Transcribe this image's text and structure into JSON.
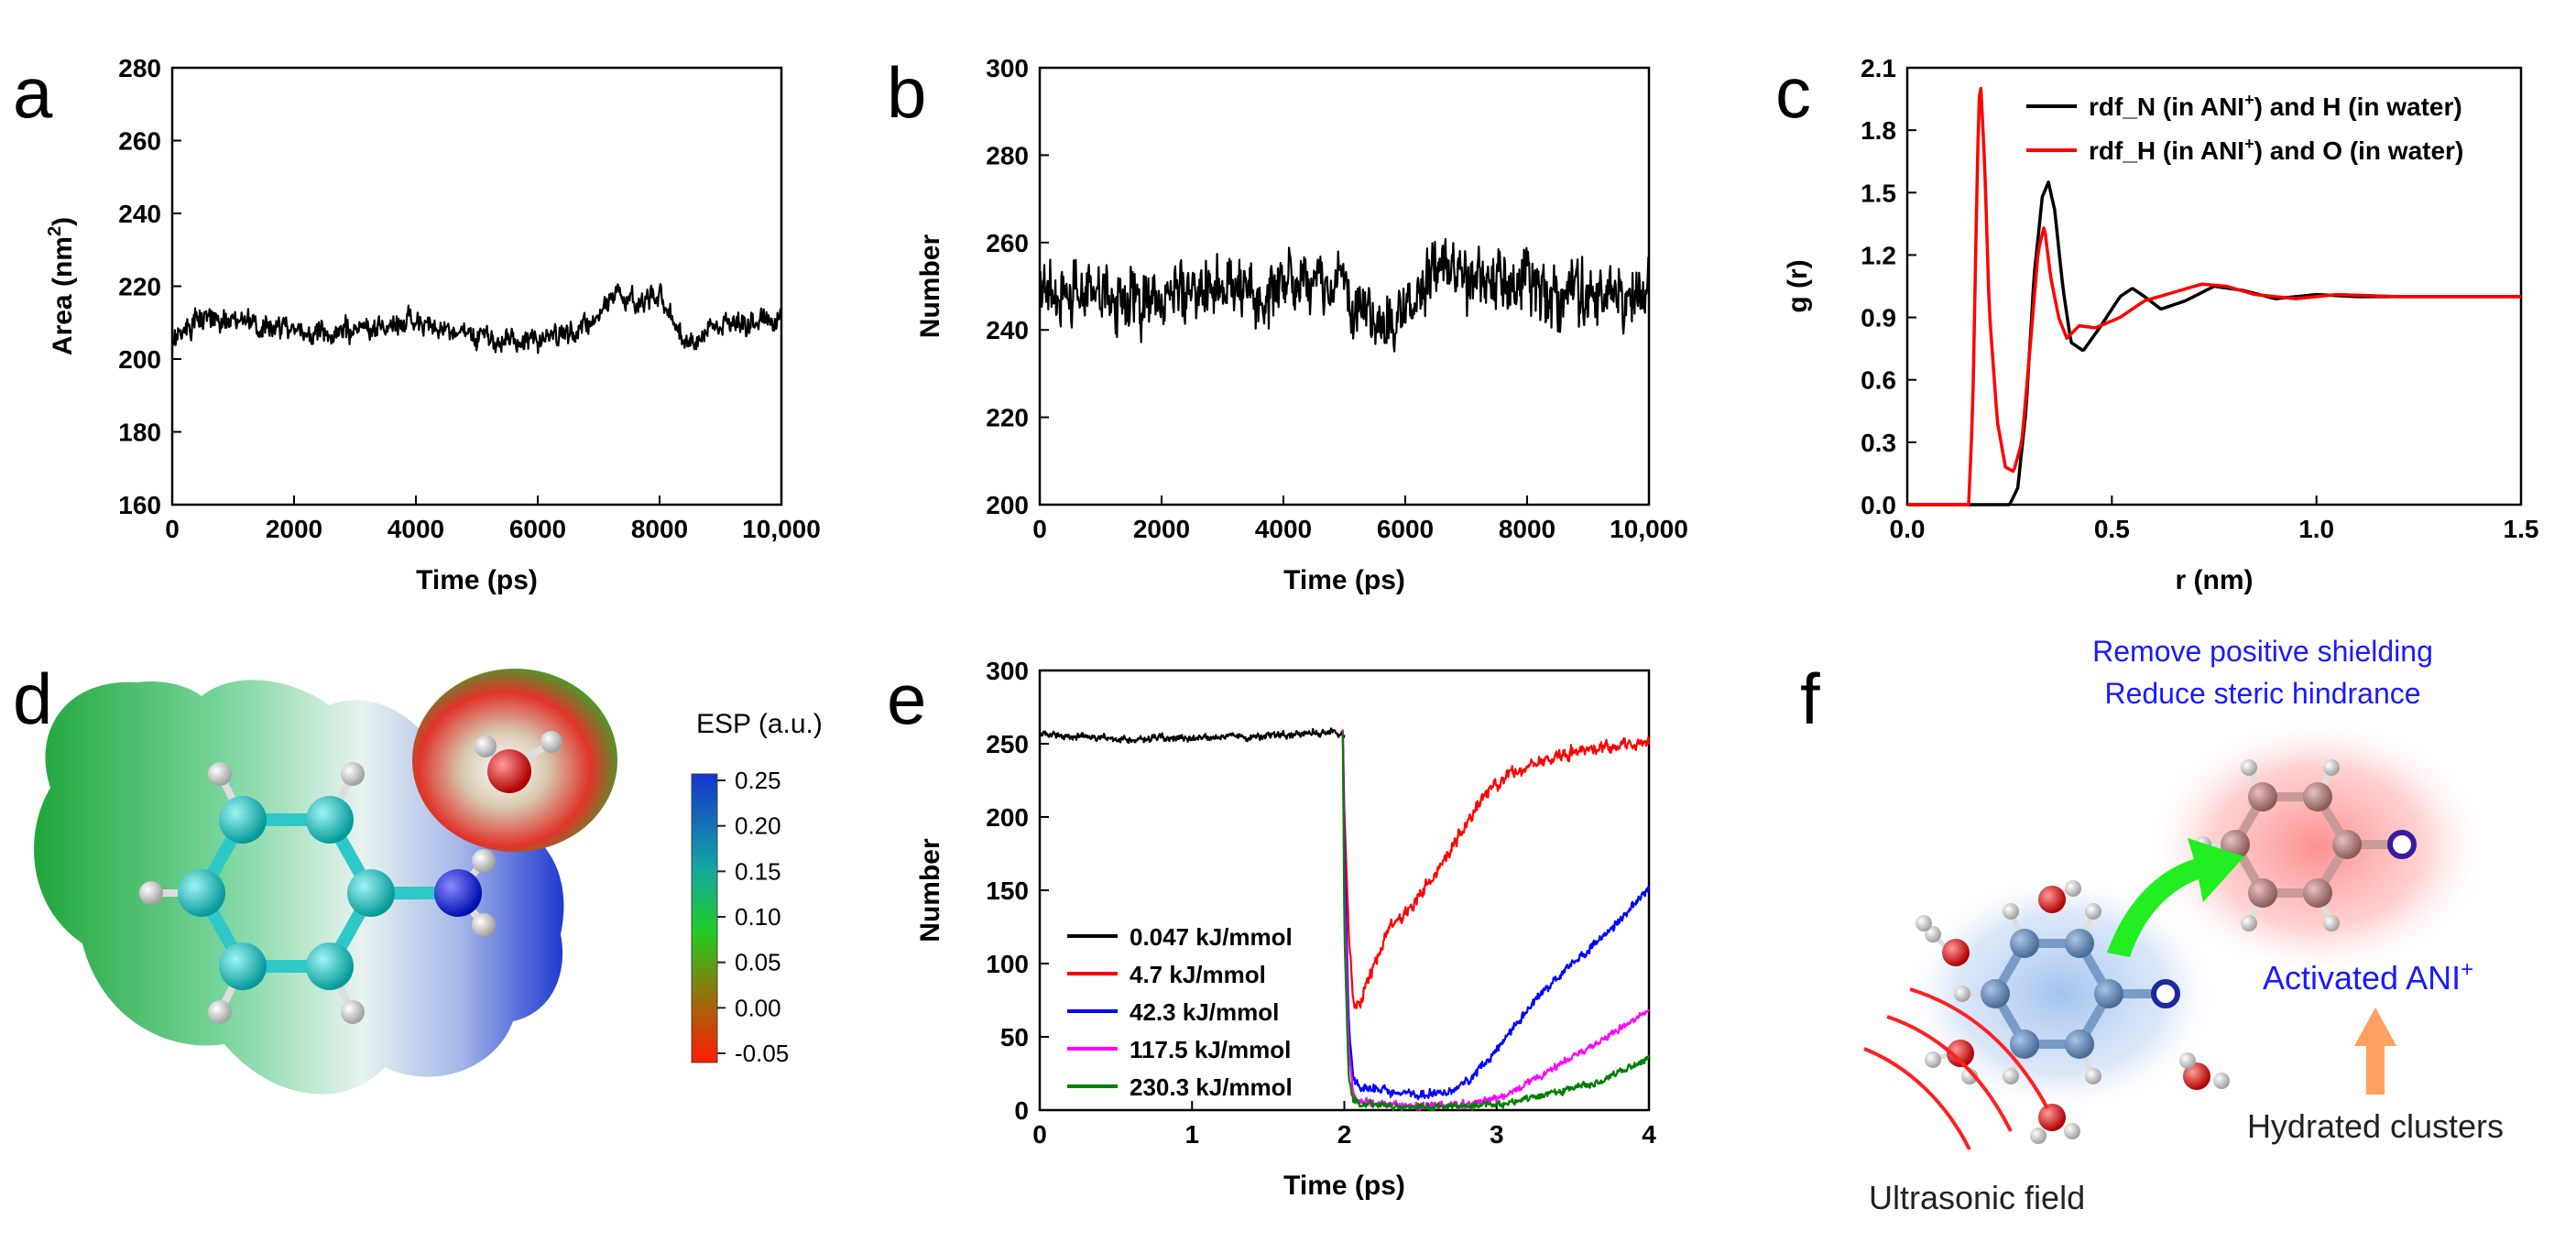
{
  "panels": {
    "a": {
      "letter": "a"
    },
    "b": {
      "letter": "b"
    },
    "c": {
      "letter": "c"
    },
    "d": {
      "letter": "d"
    },
    "e": {
      "letter": "e"
    },
    "f": {
      "letter": "f"
    }
  },
  "chart_data": [
    {
      "id": "a",
      "type": "line",
      "xlabel": "Time (ps)",
      "ylabel_main": "Area (nm",
      "ylabel_sup": "2",
      "ylabel_end": ")",
      "xlim": [
        0,
        10000
      ],
      "ylim": [
        160,
        280
      ],
      "xticks": [
        0,
        2000,
        4000,
        6000,
        8000,
        10000
      ],
      "xtick_labels": [
        "0",
        "2000",
        "4000",
        "6000",
        "8000",
        "10,000"
      ],
      "yticks": [
        160,
        180,
        200,
        220,
        240,
        260,
        280
      ],
      "ytick_labels": [
        "160",
        "180",
        "200",
        "220",
        "240",
        "260",
        "280"
      ],
      "series": [
        {
          "name": "area",
          "color": "#000000",
          "x": [
            0,
            500,
            1000,
            1500,
            2000,
            2500,
            3000,
            3500,
            4000,
            4500,
            5000,
            5500,
            6000,
            6500,
            7000,
            7300,
            7600,
            8000,
            8300,
            8600,
            9000,
            9500,
            10000
          ],
          "y": [
            205,
            212,
            210,
            210,
            207,
            207,
            208,
            209,
            211,
            208,
            206,
            205,
            205,
            207,
            211,
            220,
            215,
            217,
            208,
            205,
            210,
            210,
            211
          ],
          "noise": 4
        }
      ]
    },
    {
      "id": "b",
      "type": "line",
      "xlabel": "Time (ps)",
      "ylabel": "Number",
      "xlim": [
        0,
        10000
      ],
      "ylim": [
        200,
        300
      ],
      "xticks": [
        0,
        2000,
        4000,
        6000,
        8000,
        10000
      ],
      "xtick_labels": [
        "0",
        "2000",
        "4000",
        "6000",
        "8000",
        "10,000"
      ],
      "yticks": [
        200,
        220,
        240,
        260,
        280,
        300
      ],
      "ytick_labels": [
        "200",
        "220",
        "240",
        "260",
        "280",
        "300"
      ],
      "series": [
        {
          "name": "number",
          "color": "#000000",
          "x": [
            0,
            1000,
            2000,
            3000,
            4000,
            5000,
            5500,
            6000,
            6500,
            7000,
            8000,
            8500,
            9000,
            10000
          ],
          "y": [
            250,
            248,
            248,
            250,
            250,
            250,
            240,
            245,
            255,
            252,
            252,
            245,
            248,
            250
          ],
          "noise": 9
        }
      ]
    },
    {
      "id": "c",
      "type": "line",
      "xlabel": "r (nm)",
      "ylabel": "g (r)",
      "xlim": [
        0,
        1.5
      ],
      "ylim": [
        0,
        2.1
      ],
      "xticks": [
        0,
        0.5,
        1.0,
        1.5
      ],
      "xtick_labels": [
        "0.0",
        "0.5",
        "1.0",
        "1.5"
      ],
      "yticks": [
        0,
        0.3,
        0.6,
        0.9,
        1.2,
        1.5,
        1.8,
        2.1
      ],
      "ytick_labels": [
        "0.0",
        "0.3",
        "0.6",
        "0.9",
        "1.2",
        "1.5",
        "1.8",
        "2.1"
      ],
      "legend_position": "top-right",
      "series": [
        {
          "name_main": "rdf_N (in ANI",
          "name_sup": "+",
          "name_end": ") and H (in water)",
          "color": "#000000",
          "x": [
            0,
            0.25,
            0.27,
            0.29,
            0.31,
            0.33,
            0.345,
            0.36,
            0.38,
            0.4,
            0.43,
            0.47,
            0.52,
            0.55,
            0.58,
            0.62,
            0.68,
            0.75,
            0.82,
            0.9,
            1.0,
            1.1,
            1.2,
            1.3,
            1.4,
            1.5
          ],
          "y": [
            0,
            0,
            0.08,
            0.45,
            1.1,
            1.48,
            1.55,
            1.42,
            1.05,
            0.78,
            0.74,
            0.85,
            1.0,
            1.04,
            1.0,
            0.94,
            0.98,
            1.05,
            1.03,
            0.99,
            1.01,
            1.0,
            1.0,
            1.0,
            1.0,
            1.0
          ]
        },
        {
          "name_main": "rdf_H (in ANI",
          "name_sup": "+",
          "name_end": ") and O (in water)",
          "color": "#ff0000",
          "x": [
            0,
            0.15,
            0.16,
            0.17,
            0.175,
            0.18,
            0.19,
            0.2,
            0.22,
            0.24,
            0.26,
            0.28,
            0.3,
            0.32,
            0.335,
            0.35,
            0.37,
            0.39,
            0.42,
            0.46,
            0.52,
            0.58,
            0.65,
            0.72,
            0.78,
            0.85,
            0.95,
            1.05,
            1.2,
            1.35,
            1.5
          ],
          "y": [
            0,
            0,
            0.45,
            1.5,
            1.95,
            2.0,
            1.6,
            0.95,
            0.4,
            0.18,
            0.16,
            0.3,
            0.75,
            1.22,
            1.34,
            1.1,
            0.9,
            0.8,
            0.86,
            0.85,
            0.9,
            0.98,
            1.02,
            1.06,
            1.05,
            1.01,
            0.99,
            1.01,
            1.0,
            1.0,
            1.0
          ]
        }
      ]
    },
    {
      "id": "e",
      "type": "line",
      "xlabel": "Time (ps)",
      "ylabel": "Number",
      "xlim": [
        0,
        4
      ],
      "ylim": [
        0,
        300
      ],
      "xticks": [
        0,
        1,
        2,
        3,
        4
      ],
      "xtick_labels": [
        "0",
        "1",
        "2",
        "3",
        "4"
      ],
      "yticks": [
        0,
        50,
        100,
        150,
        200,
        250,
        300
      ],
      "ytick_labels": [
        "0",
        "50",
        "100",
        "150",
        "200",
        "250",
        "300"
      ],
      "legend_position": "lower-left",
      "series": [
        {
          "name": "0.047 kJ/mmol",
          "color": "#000000",
          "x": [
            0,
            0.5,
            1.0,
            1.5,
            1.95,
            2.0
          ],
          "y": [
            257,
            253,
            254,
            255,
            258,
            255
          ],
          "noise": 3
        },
        {
          "name": "4.7 kJ/mmol",
          "color": "#ff0000",
          "x": [
            1.99,
            2.0,
            2.03,
            2.06,
            2.1,
            2.2,
            2.3,
            2.45,
            2.6,
            2.8,
            2.95,
            3.1,
            3.3,
            3.5,
            3.75,
            4.0
          ],
          "y": [
            258,
            200,
            120,
            75,
            72,
            100,
            125,
            140,
            162,
            195,
            218,
            230,
            238,
            245,
            248,
            252
          ],
          "noise": 5
        },
        {
          "name": "42.3 kJ/mmol",
          "color": "#0000ff",
          "x": [
            1.99,
            2.0,
            2.03,
            2.06,
            2.1,
            2.3,
            2.5,
            2.7,
            2.9,
            3.1,
            3.3,
            3.5,
            3.7,
            3.9,
            4.0
          ],
          "y": [
            258,
            180,
            60,
            20,
            15,
            12,
            10,
            12,
            28,
            55,
            80,
            100,
            118,
            140,
            152
          ],
          "noise": 4
        },
        {
          "name": "117.5 kJ/mmol",
          "color": "#ff00ff",
          "x": [
            1.99,
            2.0,
            2.03,
            2.06,
            2.1,
            2.3,
            2.5,
            2.8,
            3.0,
            3.2,
            3.4,
            3.6,
            3.8,
            4.0
          ],
          "y": [
            258,
            150,
            40,
            10,
            6,
            4,
            3,
            4,
            8,
            18,
            30,
            42,
            55,
            68
          ],
          "noise": 3
        },
        {
          "name": "230.3 kJ/mmol",
          "color": "#008000",
          "x": [
            1.99,
            2.0,
            2.03,
            2.06,
            2.1,
            2.3,
            2.6,
            2.9,
            3.1,
            3.3,
            3.5,
            3.7,
            3.9,
            4.0
          ],
          "y": [
            258,
            120,
            20,
            8,
            5,
            3,
            2,
            3,
            5,
            10,
            15,
            20,
            30,
            35
          ],
          "noise": 3
        }
      ]
    }
  ],
  "esp": {
    "title": "ESP (a.u.)",
    "ticks": [
      "0.25",
      "0.20",
      "0.15",
      "0.10",
      "0.05",
      "0.00",
      "-0.05"
    ],
    "colors": {
      "high": "#1533cc",
      "mid": "#22bb33",
      "low": "#ff1a00"
    }
  },
  "scheme_f": {
    "line1": "Remove positive shielding",
    "line2": "Reduce steric hindrance",
    "activated": "Activated ANI",
    "activated_sup": "+",
    "hydrated": "Hydrated clusters",
    "ultrasonic": "Ultrasonic field",
    "colors": {
      "blue_text": "#1a1aff",
      "arrow_green": "#22ee22",
      "arrow_orange": "#ffa060",
      "wave_red": "#ff2020"
    }
  }
}
